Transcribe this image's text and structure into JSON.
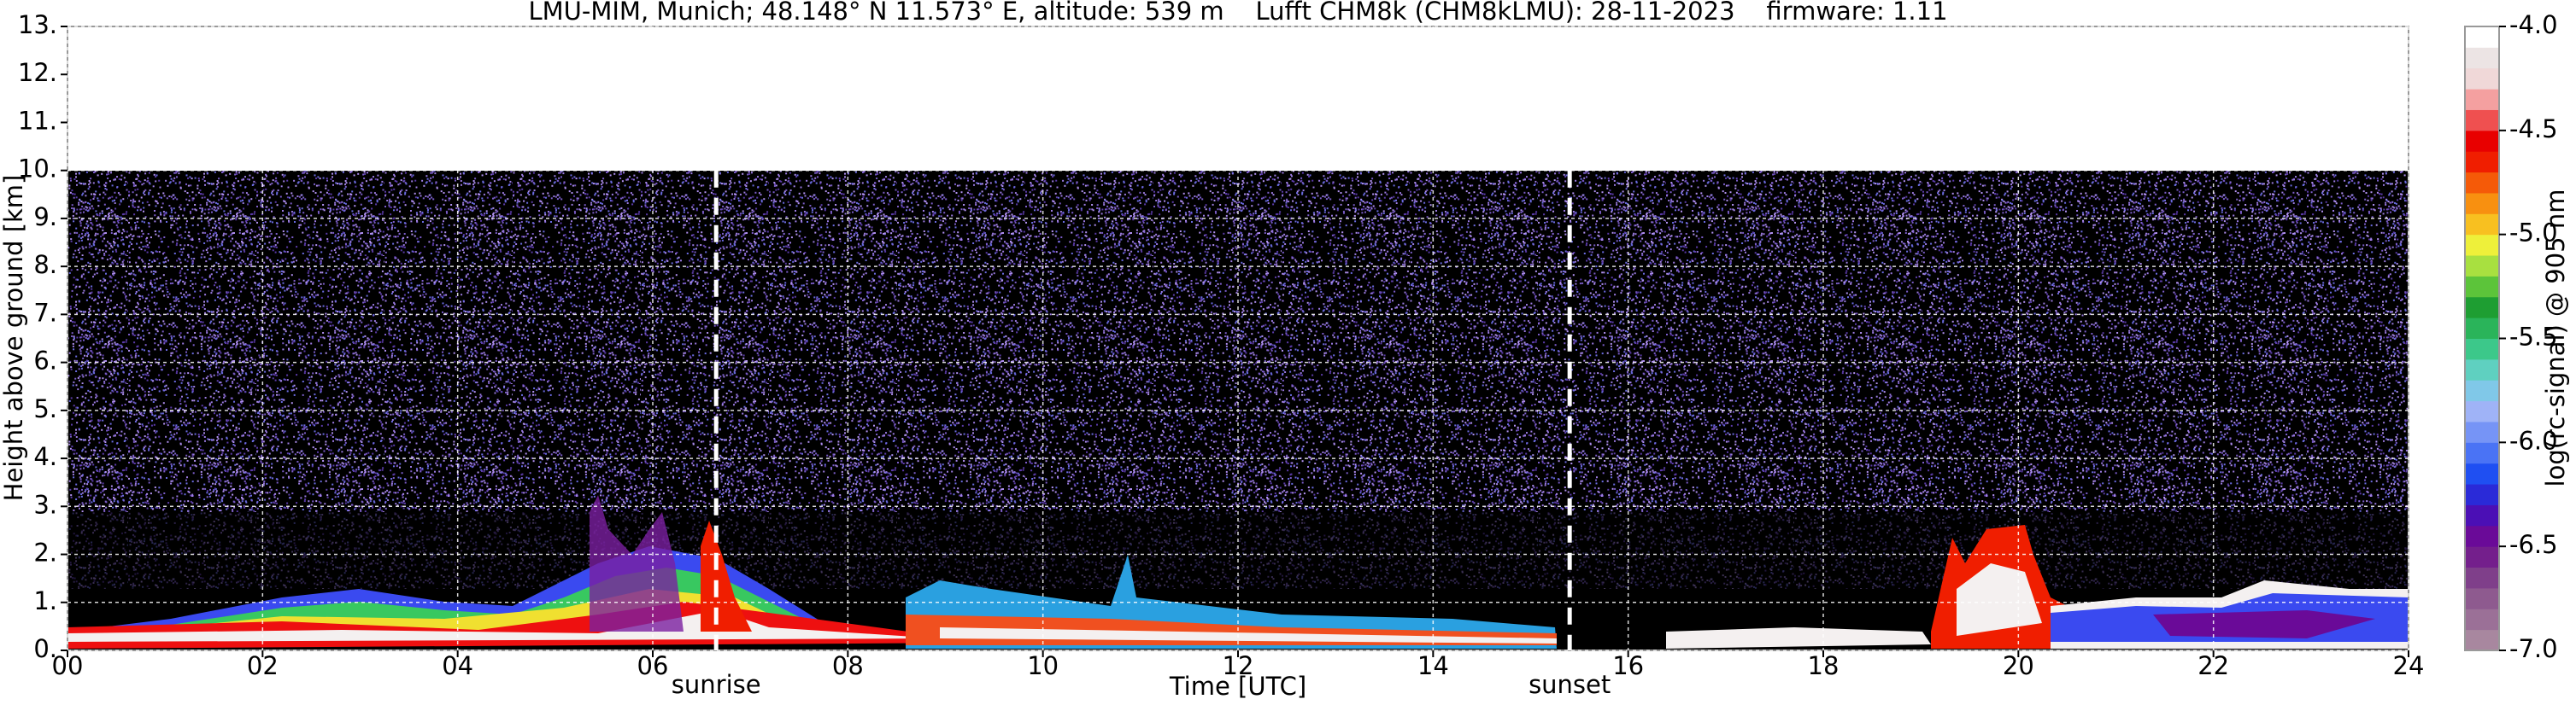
{
  "chart_data": {
    "type": "heatmap",
    "title": "LMU-MIM, Munich; 48.148° N 11.573° E, altitude: 539 m    Lufft CHM8k (CHM8kLMU): 28-11-2023    firmware: 1.11",
    "x_label": "Time [UTC]",
    "y_label": "Height above ground [km]",
    "xlim": [
      0,
      24
    ],
    "xticks": [
      {
        "value": 0,
        "label": "00"
      },
      {
        "value": 2,
        "label": "02"
      },
      {
        "value": 4,
        "label": "04"
      },
      {
        "value": 6,
        "label": "06"
      },
      {
        "value": 8,
        "label": "08"
      },
      10,
      12,
      14,
      16,
      18,
      20,
      22,
      24
    ],
    "ylim": [
      0,
      13
    ],
    "yticks": [
      {
        "value": 0,
        "label": "0."
      },
      {
        "value": 1,
        "label": "1."
      },
      {
        "value": 2,
        "label": "2."
      },
      {
        "value": 3,
        "label": "3."
      },
      {
        "value": 4,
        "label": "4."
      },
      {
        "value": 5,
        "label": "5."
      },
      {
        "value": 6,
        "label": "6."
      },
      {
        "value": 7,
        "label": "7."
      },
      {
        "value": 8,
        "label": "8."
      },
      {
        "value": 9,
        "label": "9."
      },
      {
        "value": 10,
        "label": "10."
      },
      {
        "value": 11,
        "label": "11."
      },
      {
        "value": 12,
        "label": "12."
      },
      {
        "value": 13,
        "label": "13."
      }
    ],
    "grid": true,
    "annotations": [
      {
        "label": "sunrise",
        "x": 6.65
      },
      {
        "label": "sunset",
        "x": 15.4
      }
    ],
    "colorbar": {
      "label": "log(rc-signal) @ 905 nm",
      "clim": [
        -7,
        -4
      ],
      "ticks": [
        {
          "value": -7,
          "label": "-7.0"
        },
        -6.5,
        {
          "value": -6,
          "label": "-6.0"
        },
        -5.5,
        {
          "value": -5,
          "label": "-5.0"
        },
        -4.5,
        {
          "value": -4,
          "label": "-4.0"
        }
      ],
      "colors": [
        "#a8879f",
        "#9b7097",
        "#8e5a8f",
        "#7f3f8a",
        "#741f8c",
        "#6a0a98",
        "#4b0fb5",
        "#2a2ad8",
        "#1f4ff2",
        "#4a73f5",
        "#7694f6",
        "#9fb3f7",
        "#80c8e8",
        "#5fd0c0",
        "#3cc88a",
        "#2ab45a",
        "#1e9e32",
        "#5cc43a",
        "#a8e040",
        "#eef03a",
        "#f8c020",
        "#f89010",
        "#f55a08",
        "#f01e00",
        "#e80000",
        "#ef5050",
        "#f4a0a0",
        "#f0d8d8",
        "#ece4e4",
        "#ffffff"
      ]
    }
  }
}
